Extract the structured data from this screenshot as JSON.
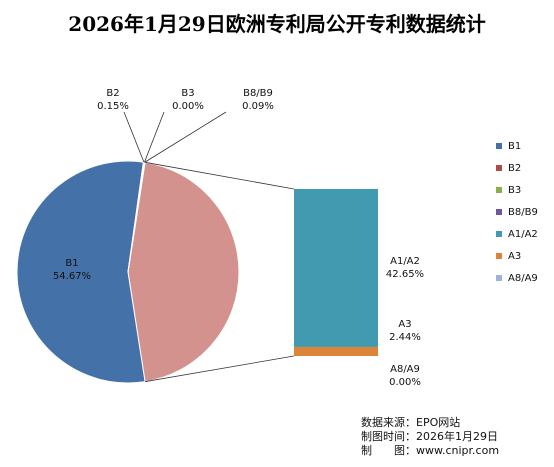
{
  "chart_data": {
    "type": "pie",
    "variant": "bar-of-pie",
    "title": "2026年1月29日欧洲专利局公开专利数据统计",
    "pie": [
      {
        "name": "B1",
        "value": 54.67,
        "label": "54.67%",
        "color": "#4472a8"
      },
      {
        "name": "B2",
        "value": 0.15,
        "label": "0.15%",
        "color": "#b04a46"
      },
      {
        "name": "B3",
        "value": 0.0,
        "label": "0.00%",
        "color": "#8ab04a"
      },
      {
        "name": "B8/B9",
        "value": 0.09,
        "label": "0.09%",
        "color": "#7354a0"
      }
    ],
    "other_slice": {
      "value": 45.09,
      "color": "#d4928f"
    },
    "bar": [
      {
        "name": "A1/A2",
        "value": 42.65,
        "label": "42.65%",
        "color": "#419aaf"
      },
      {
        "name": "A3",
        "value": 2.44,
        "label": "2.44%",
        "color": "#dc8538"
      },
      {
        "name": "A8/A9",
        "value": 0.0,
        "label": "0.00%",
        "color": "#9bb4d4"
      }
    ],
    "legend": {
      "placement": "right",
      "items": [
        {
          "name": "B1",
          "color": "#4472a8"
        },
        {
          "name": "B2",
          "color": "#b04a46"
        },
        {
          "name": "B3",
          "color": "#8ab04a"
        },
        {
          "name": "B8/B9",
          "color": "#7354a0"
        },
        {
          "name": "A1/A2",
          "color": "#419aaf"
        },
        {
          "name": "A3",
          "color": "#dc8538"
        },
        {
          "name": "A8/A9",
          "color": "#9bb4d4"
        }
      ]
    }
  },
  "source": {
    "line1": "数据来源：EPO网站",
    "line2": "制图时间：2026年1月29日",
    "line3": "制　　图：www.cnipr.com"
  }
}
